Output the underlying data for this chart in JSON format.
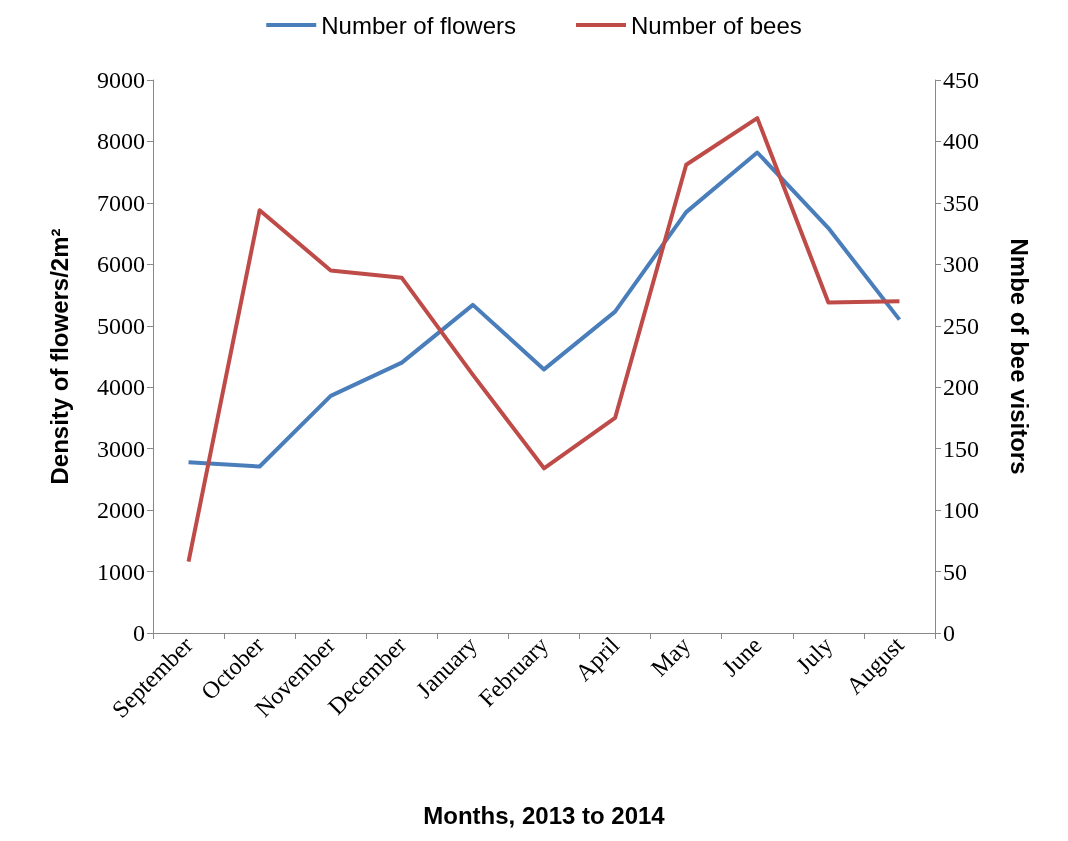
{
  "chart_data": {
    "type": "line",
    "xlabel": "Months, 2013 to 2014",
    "ylabel": "Density of flowers/2m²",
    "y2label": "Nmbe of bee visitors",
    "categories": [
      "September",
      "October",
      "November",
      "December",
      "January",
      "February",
      "April",
      "May",
      "June",
      "July",
      "August"
    ],
    "series": [
      {
        "name": "Number of flowers",
        "color": "#4a7ebb",
        "values": [
          2780,
          2710,
          3860,
          4400,
          5340,
          4290,
          5230,
          6850,
          7820,
          6590,
          5100
        ]
      },
      {
        "name": "Number of bees",
        "color": "#be4b48",
        "axis": "y2",
        "values": [
          58,
          344,
          295,
          289,
          210,
          134,
          175,
          381,
          419,
          269,
          270
        ]
      }
    ],
    "ylim": [
      0,
      9000
    ],
    "yticks": [
      0,
      1000,
      2000,
      3000,
      4000,
      5000,
      6000,
      7000,
      8000,
      9000
    ],
    "y2lim": [
      0,
      450
    ],
    "y2ticks": [
      0,
      50,
      100,
      150,
      200,
      250,
      300,
      350,
      400,
      450
    ],
    "grid": false,
    "legend": "top",
    "marker": "none",
    "line_style": "solid"
  }
}
